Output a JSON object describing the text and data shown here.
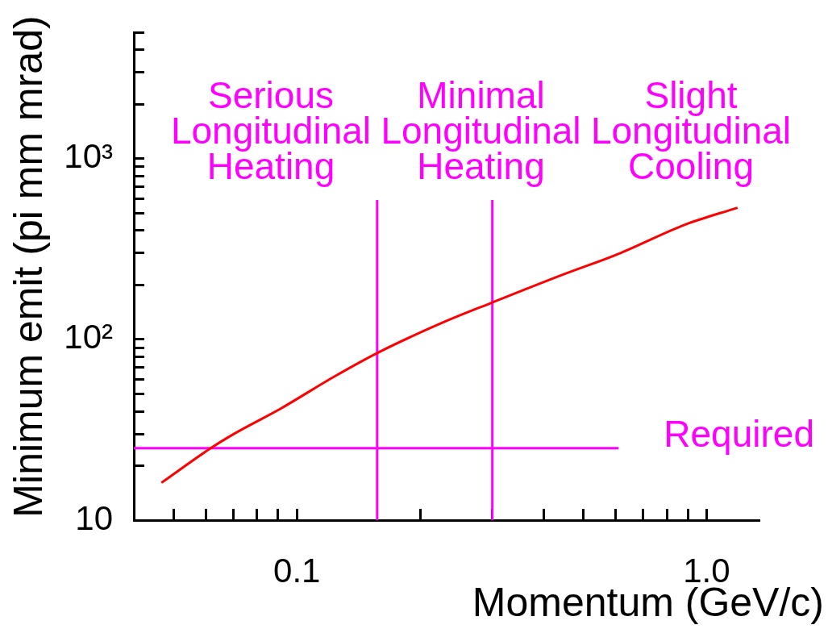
{
  "chart_data": {
    "type": "line",
    "xlabel": "Momentum (GeV/c)",
    "ylabel": "Minimum emit (pi mm mrad)",
    "log": "xy",
    "xlim": [
      0.04,
      1.34
    ],
    "xticks": [
      {
        "value": 0.05,
        "label": null
      },
      {
        "value": 0.06,
        "label": null
      },
      {
        "value": 0.07,
        "label": null
      },
      {
        "value": 0.08,
        "label": null
      },
      {
        "value": 0.09,
        "label": null
      },
      0.1,
      {
        "value": 0.2,
        "label": null
      },
      {
        "value": 0.3,
        "label": null
      },
      {
        "value": 0.4,
        "label": null
      },
      {
        "value": 0.5,
        "label": null
      },
      {
        "value": 0.6,
        "label": null
      },
      {
        "value": 0.7,
        "label": null
      },
      {
        "value": 0.8,
        "label": null
      },
      {
        "value": 0.9,
        "label": null
      },
      {
        "value": 1,
        "label": "1.0"
      }
    ],
    "ylim": [
      10,
      5000
    ],
    "yticks": [
      10,
      {
        "value": 20,
        "label": null
      },
      {
        "value": 30,
        "label": null
      },
      {
        "value": 40,
        "label": null
      },
      {
        "value": 50,
        "label": null
      },
      {
        "value": 60,
        "label": null
      },
      {
        "value": 70,
        "label": null
      },
      {
        "value": 80,
        "label": null
      },
      {
        "value": 90,
        "label": null
      },
      {
        "value": 100,
        "label": "10²"
      },
      {
        "value": 200,
        "label": null
      },
      {
        "value": 300,
        "label": null
      },
      {
        "value": 400,
        "label": null
      },
      {
        "value": 500,
        "label": null
      },
      {
        "value": 600,
        "label": null
      },
      {
        "value": 700,
        "label": null
      },
      {
        "value": 800,
        "label": null
      },
      {
        "value": 900,
        "label": null
      },
      {
        "value": 1000,
        "label": "10³"
      },
      {
        "value": 2000,
        "label": null
      },
      {
        "value": 3000,
        "label": null
      },
      {
        "value": 4000,
        "label": null
      },
      {
        "value": 5000,
        "label": null
      }
    ],
    "series": [
      {
        "color": "#ff0000",
        "x": [
          0.0467,
          0.0616,
          0.0695,
          0.0913,
          0.1236,
          0.157,
          0.2265,
          0.3,
          0.448,
          0.607,
          0.886,
          1.19
        ],
        "values": [
          16.1,
          25,
          29.6,
          41.4,
          62.4,
          84,
          123.6,
          160,
          229,
          296,
          431,
          535
        ]
      },
      {
        "color": "#ff00ff",
        "x": [
          0.157,
          0.157
        ],
        "values": [
          10,
          590
        ]
      },
      {
        "color": "#ff00ff",
        "x": [
          0.3,
          0.3
        ],
        "values": [
          10,
          590
        ]
      },
      {
        "name": "Required",
        "color": "#ff00ff",
        "x": [
          0.04,
          0.61
        ],
        "values": [
          25,
          25
        ]
      }
    ],
    "annotations": [
      "Serious\nLongitudinal\nHeating",
      "Minimal\nLongitudinal\nHeating",
      "Slight\nLongitudinal\nCooling"
    ]
  }
}
